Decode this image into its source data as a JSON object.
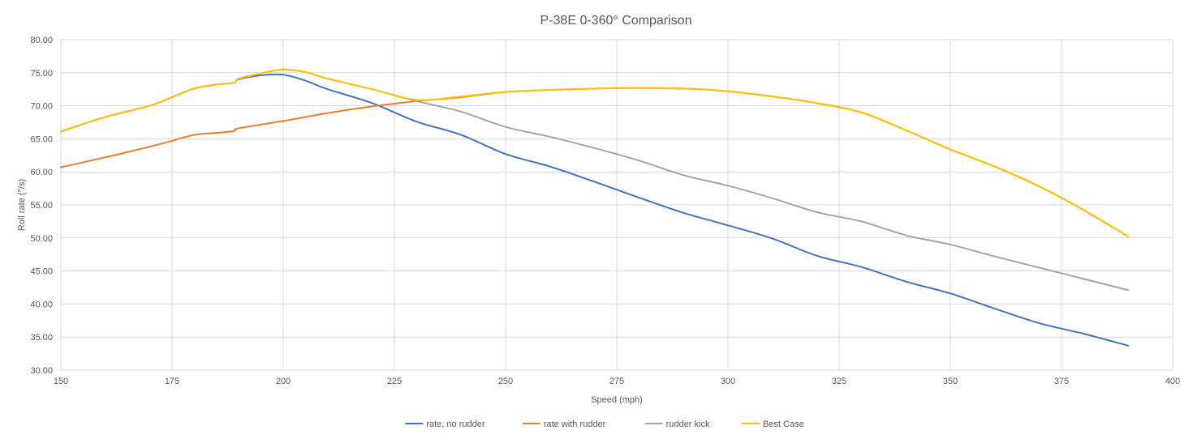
{
  "chart_data": {
    "type": "line",
    "title": "P-38E 0-360° Comparison",
    "xlabel": "Speed (mph)",
    "ylabel": "Roll rate (°/s)",
    "xlim": [
      150,
      400
    ],
    "ylim": [
      30,
      80
    ],
    "x_ticks": [
      "150",
      "175",
      "200",
      "225",
      "250",
      "275",
      "300",
      "325",
      "350",
      "375",
      "400"
    ],
    "y_ticks": [
      "30.00",
      "35.00",
      "40.00",
      "45.00",
      "50.00",
      "55.00",
      "60.00",
      "65.00",
      "70.00",
      "75.00",
      "80.00"
    ],
    "grid": true,
    "legend_position": "bottom",
    "series": [
      {
        "name": "rate, no rudder",
        "color": "#4472C4",
        "x": [
          150,
          160,
          170,
          175,
          180,
          185,
          189,
          190,
          195,
          200,
          205,
          210,
          220,
          230,
          240,
          250,
          260,
          270,
          280,
          290,
          300,
          310,
          320,
          330,
          340,
          350,
          360,
          370,
          380,
          390
        ],
        "y": [
          66.1,
          68.3,
          70.0,
          71.3,
          72.6,
          73.2,
          73.5,
          74.0,
          74.6,
          74.7,
          73.8,
          72.5,
          70.4,
          67.6,
          65.6,
          62.7,
          60.8,
          58.5,
          56.1,
          53.8,
          51.9,
          49.9,
          47.3,
          45.6,
          43.4,
          41.6,
          39.3,
          37.1,
          35.5,
          33.7
        ]
      },
      {
        "name": "rate with rudder",
        "color": "#ED7D31",
        "x": [
          150,
          160,
          170,
          175,
          180,
          185,
          189,
          190,
          200,
          210,
          220,
          230,
          240,
          250,
          260,
          270,
          280,
          290,
          300,
          310,
          320,
          330,
          340,
          350,
          360,
          370,
          380,
          390
        ],
        "y": [
          60.7,
          62.2,
          63.8,
          64.7,
          65.6,
          65.9,
          66.2,
          66.6,
          67.7,
          68.9,
          69.9,
          70.7,
          71.3,
          72.1,
          72.4,
          72.6,
          72.7,
          72.6,
          72.2,
          71.4,
          70.4,
          69.0,
          66.3,
          63.4,
          60.8,
          57.8,
          54.2,
          50.2
        ]
      },
      {
        "name": "rudder kick",
        "color": "#A5A5A5",
        "x": [
          150,
          160,
          170,
          175,
          180,
          185,
          189,
          190,
          195,
          200,
          205,
          210,
          220,
          230,
          240,
          250,
          260,
          270,
          280,
          290,
          300,
          310,
          320,
          330,
          340,
          350,
          360,
          370,
          380,
          390
        ],
        "y": [
          66.1,
          68.3,
          70.0,
          71.3,
          72.6,
          73.2,
          73.5,
          74.1,
          74.9,
          75.5,
          75.1,
          74.1,
          72.5,
          70.7,
          69.1,
          66.8,
          65.3,
          63.6,
          61.7,
          59.5,
          57.9,
          56.0,
          53.9,
          52.5,
          50.4,
          49.0,
          47.2,
          45.5,
          43.8,
          42.1
        ]
      },
      {
        "name": "Best Case",
        "color": "#FFC000",
        "x": [
          150,
          160,
          170,
          175,
          180,
          185,
          189,
          190,
          195,
          200,
          205,
          210,
          220,
          230,
          240,
          250,
          260,
          270,
          280,
          290,
          300,
          310,
          320,
          330,
          340,
          350,
          360,
          370,
          380,
          390
        ],
        "y": [
          66.1,
          68.3,
          70.0,
          71.3,
          72.6,
          73.2,
          73.5,
          74.1,
          74.9,
          75.5,
          75.1,
          74.1,
          72.5,
          70.9,
          71.4,
          72.1,
          72.4,
          72.6,
          72.7,
          72.6,
          72.2,
          71.4,
          70.4,
          69.0,
          66.3,
          63.4,
          60.8,
          57.8,
          54.2,
          50.2
        ]
      }
    ]
  }
}
